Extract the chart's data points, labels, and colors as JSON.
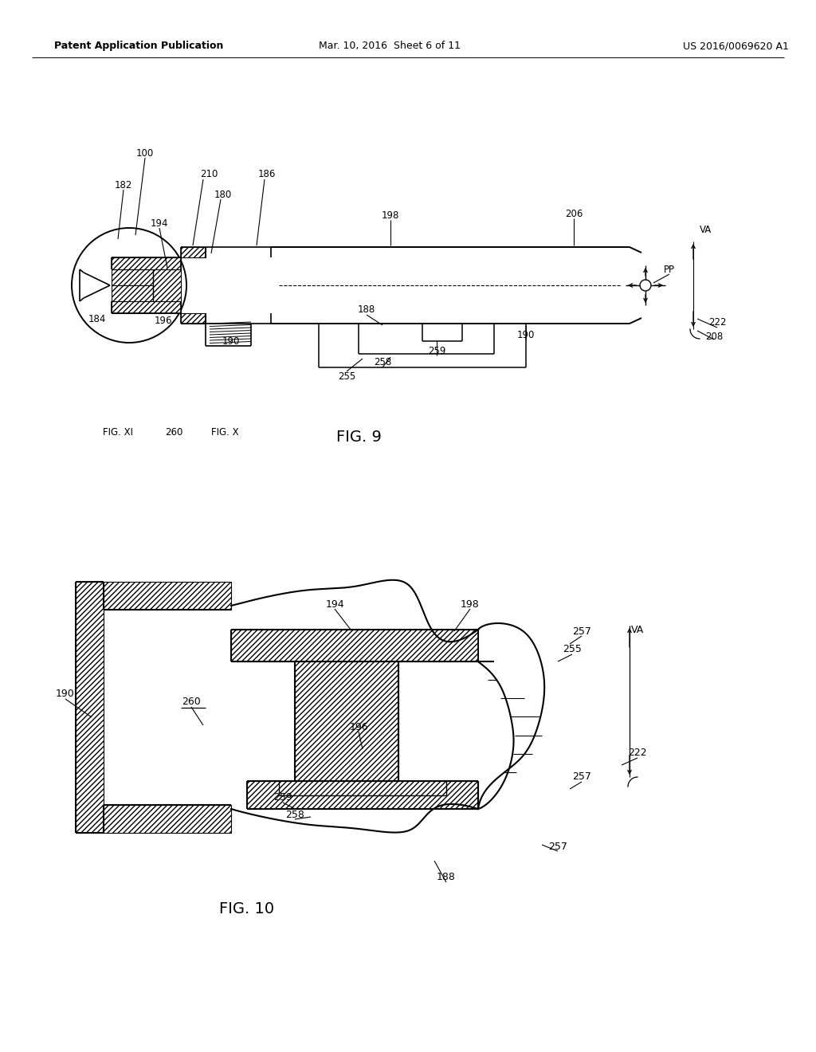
{
  "background_color": "#ffffff",
  "header_left": "Patent Application Publication",
  "header_center": "Mar. 10, 2016  Sheet 6 of 11",
  "header_right": "US 2016/0069620 A1",
  "fig9_label": "FIG. 9",
  "fig10_label": "FIG. 10",
  "line_color": "#000000",
  "text_color": "#000000"
}
